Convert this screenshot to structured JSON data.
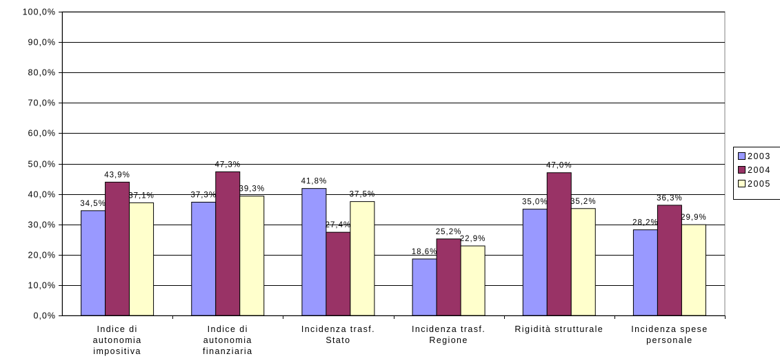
{
  "chart_data": {
    "type": "bar",
    "categories": [
      [
        "Indice di",
        "autonomia",
        "impositiva"
      ],
      [
        "Indice di",
        "autonomia",
        "finanziaria"
      ],
      [
        "Incidenza trasf.",
        "Stato"
      ],
      [
        "Incidenza trasf.",
        "Regione"
      ],
      [
        "Rigidità strutturale"
      ],
      [
        "Incidenza spese",
        "personale"
      ]
    ],
    "series": [
      {
        "name": "2003",
        "color": "#9999ff",
        "values": [
          34.5,
          37.3,
          41.8,
          18.6,
          35.0,
          28.2
        ],
        "labels": [
          "34,5%",
          "37,3%",
          "41,8%",
          "18,6%",
          "35,0%",
          "28,2%"
        ]
      },
      {
        "name": "2004",
        "color": "#993366",
        "values": [
          43.9,
          47.3,
          27.4,
          25.2,
          47.0,
          36.3
        ],
        "labels": [
          "43,9%",
          "47,3%",
          "27,4%",
          "25,2%",
          "47,0%",
          "36,3%"
        ]
      },
      {
        "name": "2005",
        "color": "#ffffcc",
        "values": [
          37.1,
          39.3,
          37.5,
          22.9,
          35.2,
          29.9
        ],
        "labels": [
          "37,1%",
          "39,3%",
          "37,5%",
          "22,9%",
          "35,2%",
          "29,9%"
        ]
      }
    ],
    "yticks": [
      "0,0%",
      "10,0%",
      "20,0%",
      "30,0%",
      "40,0%",
      "50,0%",
      "60,0%",
      "70,0%",
      "80,0%",
      "90,0%",
      "100,0%"
    ],
    "ylim": [
      0,
      100
    ],
    "grid": true,
    "legend_position": "right"
  }
}
